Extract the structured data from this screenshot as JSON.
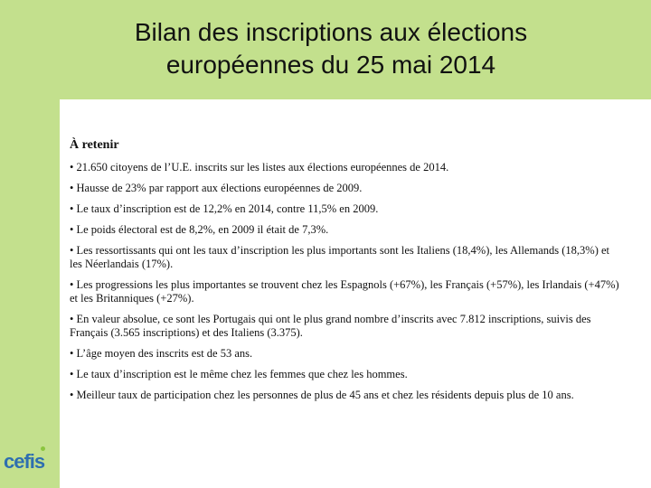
{
  "slide": {
    "title_line1": "Bilan des inscriptions aux élections",
    "title_line2": "européennes du 25 mai 2014",
    "heading": "À retenir",
    "items": [
      "• 21.650 citoyens de l’U.E. inscrits sur les listes aux élections européennes de 2014.",
      "• Hausse de 23% par rapport aux élections européennes de 2009.",
      "• Le taux d’inscription est de 12,2% en 2014, contre 11,5% en 2009.",
      "• Le poids électoral est de 8,2%, en 2009 il était de 7,3%.",
      "• Les ressortissants qui ont les taux d’inscription les plus importants sont les Italiens (18,4%), les Allemands (18,3%) et les Néerlandais (17%).",
      "• Les progressions les plus importantes se trouvent chez les Espagnols (+67%), les Français (+57%), les Irlandais (+47%) et les Britanniques (+27%).",
      "• En valeur absolue, ce sont les Portugais qui ont le plus grand nombre d’inscrits avec 7.812 inscriptions, suivis des Français (3.565 inscriptions) et des Italiens (3.375).",
      "• L’âge moyen des inscrits est de 53 ans.",
      "• Le taux d’inscription est le même chez les femmes que chez les hommes.",
      "• Meilleur taux de participation chez les personnes de plus de 45 ans et chez les résidents depuis plus de 10 ans."
    ]
  },
  "logo": {
    "text": "cefis"
  },
  "colors": {
    "accent_green": "#c3e08d",
    "logo_blue": "#2e6fb0",
    "logo_dot": "#8bc53f"
  }
}
